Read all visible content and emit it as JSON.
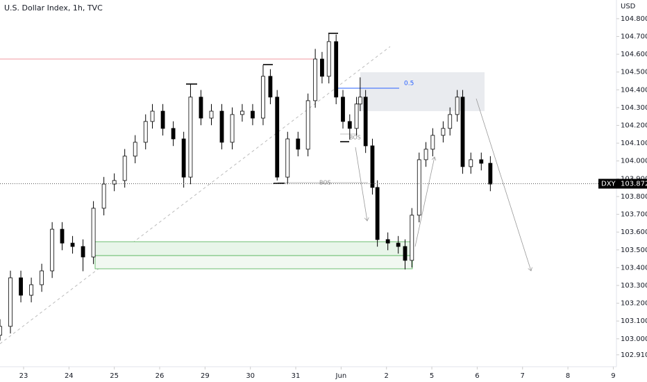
{
  "chart_data": {
    "type": "candlestick",
    "title": "U.S. Dollar Index, 1h, TVC",
    "currency": "USD",
    "up_color": "#ffffff",
    "down_color": "#000000",
    "edge_color": "#000000",
    "xlim": [
      -0.52,
      13.07
    ],
    "ylim": [
      102.843,
      104.905
    ],
    "xticks": [
      {
        "value": 0,
        "label": "23"
      },
      {
        "value": 1,
        "label": "24"
      },
      {
        "value": 2,
        "label": "25"
      },
      {
        "value": 3,
        "label": "26"
      },
      {
        "value": 4,
        "label": "29"
      },
      {
        "value": 5,
        "label": "30"
      },
      {
        "value": 6,
        "label": "31"
      },
      {
        "value": 7,
        "label": "Jun"
      },
      {
        "value": 8,
        "label": "2"
      },
      {
        "value": 9,
        "label": "5"
      },
      {
        "value": 10,
        "label": "6"
      },
      {
        "value": 11,
        "label": "7"
      },
      {
        "value": 12,
        "label": "8"
      },
      {
        "value": 13,
        "label": "9"
      }
    ],
    "yticks": [
      {
        "value": 104.8,
        "label": "104.800"
      },
      {
        "value": 104.7,
        "label": "104.700"
      },
      {
        "value": 104.6,
        "label": "104.600"
      },
      {
        "value": 104.5,
        "label": "104.500"
      },
      {
        "value": 104.4,
        "label": "104.400"
      },
      {
        "value": 104.3,
        "label": "104.300"
      },
      {
        "value": 104.2,
        "label": "104.200"
      },
      {
        "value": 104.1,
        "label": "104.100"
      },
      {
        "value": 104.0,
        "label": "104.000"
      },
      {
        "value": 103.9,
        "label": "103.900"
      },
      {
        "value": 103.8,
        "label": "103.800"
      },
      {
        "value": 103.7,
        "label": "103.700"
      },
      {
        "value": 103.6,
        "label": "103.600"
      },
      {
        "value": 103.5,
        "label": "103.500"
      },
      {
        "value": 103.4,
        "label": "103.400"
      },
      {
        "value": 103.3,
        "label": "103.300"
      },
      {
        "value": 103.2,
        "label": "103.200"
      },
      {
        "value": 103.1,
        "label": "103.100"
      },
      {
        "value": 103.0,
        "label": "103.000"
      },
      {
        "value": 102.91,
        "label": "102.910"
      }
    ],
    "current_price": {
      "symbol": "DXY",
      "value": 103.872
    },
    "annotations": {
      "bos_lower": "BOS",
      "bos_upper": "BOS",
      "fib_level": "0.5"
    },
    "x": [
      -0.52,
      -0.29,
      -0.06,
      0.17,
      0.4,
      0.63,
      0.85,
      1.08,
      1.31,
      1.54,
      1.77,
      2.0,
      2.23,
      2.46,
      2.69,
      2.84,
      3.07,
      3.3,
      3.53,
      3.68,
      3.91,
      4.14,
      4.37,
      4.6,
      4.82,
      5.05,
      5.28,
      5.44,
      5.59,
      5.82,
      6.05,
      6.27,
      6.43,
      6.58,
      6.73,
      6.89,
      7.04,
      7.19,
      7.34,
      7.42,
      7.54,
      7.69,
      7.8,
      8.03,
      8.26,
      8.41,
      8.56,
      8.72,
      8.87,
      9.02,
      9.25,
      9.4,
      9.56,
      9.68,
      9.86,
      10.09,
      10.29
    ],
    "open": [
      103.02,
      103.07,
      103.343,
      103.245,
      103.304,
      103.382,
      103.616,
      103.538,
      103.519,
      103.46,
      103.734,
      103.87,
      103.89,
      104.027,
      104.105,
      104.222,
      104.28,
      104.183,
      104.124,
      103.909,
      104.359,
      104.241,
      104.28,
      104.105,
      104.261,
      104.28,
      104.241,
      104.476,
      104.359,
      103.909,
      104.124,
      104.066,
      104.339,
      104.573,
      104.476,
      104.671,
      104.359,
      104.222,
      104.183,
      104.32,
      104.359,
      104.085,
      103.851,
      103.558,
      103.538,
      103.519,
      103.441,
      103.695,
      104.007,
      104.066,
      104.144,
      104.183,
      104.261,
      104.359,
      103.968,
      104.007,
      103.987
    ],
    "high": [
      103.11,
      103.383,
      103.383,
      103.344,
      103.422,
      103.656,
      103.656,
      103.578,
      103.559,
      103.774,
      103.91,
      103.93,
      104.067,
      104.145,
      104.262,
      104.32,
      104.32,
      104.223,
      104.164,
      104.43,
      104.399,
      104.32,
      104.32,
      104.301,
      104.32,
      104.32,
      104.54,
      104.516,
      104.399,
      104.164,
      104.164,
      104.379,
      104.63,
      104.613,
      104.72,
      104.711,
      104.399,
      104.262,
      104.36,
      104.47,
      104.399,
      104.125,
      103.891,
      103.598,
      103.578,
      103.559,
      103.735,
      104.047,
      104.106,
      104.184,
      104.223,
      104.301,
      104.399,
      104.399,
      104.047,
      104.047,
      104.027
    ],
    "low": [
      102.99,
      103.03,
      103.205,
      103.205,
      103.264,
      103.342,
      103.498,
      103.479,
      103.38,
      103.42,
      103.694,
      103.83,
      103.85,
      103.987,
      104.065,
      104.182,
      104.143,
      104.084,
      103.85,
      103.869,
      104.201,
      104.201,
      104.065,
      104.065,
      104.221,
      104.201,
      104.201,
      104.319,
      103.89,
      103.869,
      104.026,
      104.026,
      104.299,
      104.436,
      104.436,
      104.319,
      104.182,
      104.12,
      104.143,
      104.28,
      104.045,
      103.811,
      103.518,
      103.498,
      103.479,
      103.39,
      103.401,
      103.655,
      103.967,
      104.026,
      104.104,
      104.143,
      104.221,
      103.928,
      103.928,
      103.947,
      103.83
    ],
    "close": [
      103.07,
      103.343,
      103.245,
      103.304,
      103.382,
      103.616,
      103.538,
      103.519,
      103.46,
      103.734,
      103.87,
      103.89,
      104.027,
      104.105,
      104.222,
      104.28,
      104.183,
      104.124,
      103.909,
      104.359,
      104.241,
      104.28,
      104.105,
      104.261,
      104.28,
      104.241,
      104.476,
      104.359,
      103.909,
      104.124,
      104.066,
      104.339,
      104.573,
      104.476,
      104.671,
      104.359,
      104.222,
      104.183,
      104.32,
      104.359,
      104.085,
      103.851,
      103.558,
      103.538,
      103.519,
      103.441,
      103.695,
      104.007,
      104.066,
      104.144,
      104.183,
      104.261,
      104.359,
      103.968,
      104.007,
      103.987,
      103.87
    ]
  }
}
